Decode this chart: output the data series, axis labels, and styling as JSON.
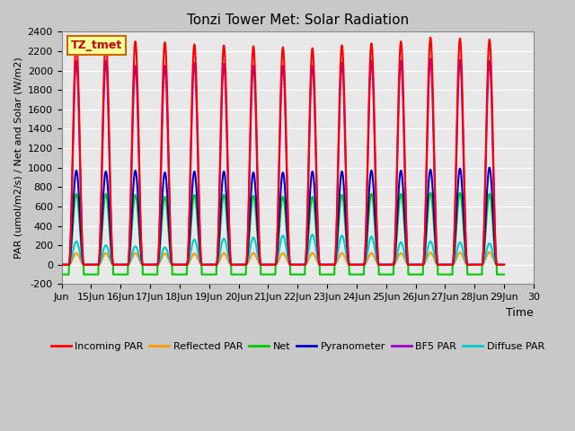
{
  "title": "Tonzi Tower Met: Solar Radiation",
  "ylabel": "PAR (umol/m2/s) / Net and Solar (W/m2)",
  "xlabel": "Time",
  "ylim": [
    -200,
    2400
  ],
  "xlim": [
    0,
    15.0
  ],
  "yticks": [
    -200,
    0,
    200,
    400,
    600,
    800,
    1000,
    1200,
    1400,
    1600,
    1800,
    2000,
    2200,
    2400
  ],
  "xtick_labels": [
    "Jun",
    "15Jun",
    "16Jun",
    "17Jun",
    "18Jun",
    "19Jun",
    "20Jun",
    "21Jun",
    "22Jun",
    "23Jun",
    "24Jun",
    "25Jun",
    "26Jun",
    "27Jun",
    "28Jun",
    "29Jun",
    "30"
  ],
  "xtick_positions": [
    0,
    1,
    2,
    3,
    4,
    5,
    6,
    7,
    8,
    9,
    10,
    11,
    12,
    13,
    14,
    15,
    16
  ],
  "plot_bg_color": "#e8e8e8",
  "grid_color": "#ffffff",
  "annotation_text": "TZ_tmet",
  "annotation_box_color": "#ffff99",
  "annotation_border_color": "#cc6600",
  "series": [
    {
      "name": "Incoming PAR",
      "color": "#ff0000",
      "lw": 1.5
    },
    {
      "name": "Reflected PAR",
      "color": "#ff9900",
      "lw": 1.5
    },
    {
      "name": "Net",
      "color": "#00cc00",
      "lw": 1.5
    },
    {
      "name": "Pyranometer",
      "color": "#0000cc",
      "lw": 1.5
    },
    {
      "name": "BF5 PAR",
      "color": "#9900cc",
      "lw": 1.5
    },
    {
      "name": "Diffuse PAR",
      "color": "#00cccc",
      "lw": 1.5
    }
  ],
  "n_days": 15,
  "pts_per_day": 200,
  "night_val": {
    "Incoming PAR": 0,
    "Reflected PAR": 0,
    "Net": -100,
    "Pyranometer": 0,
    "BF5 PAR": 0,
    "Diffuse PAR": 0
  },
  "peaks_variation": {
    "Incoming PAR": [
      2300,
      2310,
      2300,
      2290,
      2270,
      2260,
      2250,
      2240,
      2230,
      2260,
      2280,
      2300,
      2340,
      2330,
      2320
    ],
    "Reflected PAR": [
      120,
      120,
      120,
      115,
      115,
      120,
      120,
      120,
      120,
      120,
      120,
      120,
      125,
      125,
      130
    ],
    "Net": [
      730,
      730,
      720,
      700,
      720,
      720,
      710,
      700,
      700,
      720,
      730,
      730,
      740,
      740,
      730
    ],
    "Pyranometer": [
      970,
      960,
      970,
      950,
      960,
      960,
      950,
      950,
      960,
      960,
      970,
      970,
      980,
      990,
      1000
    ],
    "BF5 PAR": [
      2100,
      2100,
      2050,
      2050,
      2080,
      2070,
      2050,
      2050,
      2050,
      2080,
      2100,
      2100,
      2120,
      2110,
      2100
    ],
    "Diffuse PAR": [
      240,
      200,
      190,
      180,
      260,
      270,
      280,
      300,
      310,
      300,
      290,
      230,
      240,
      230,
      220
    ]
  },
  "draw_order": [
    "Reflected PAR",
    "Net",
    "Diffuse PAR",
    "Pyranometer",
    "BF5 PAR",
    "Incoming PAR"
  ]
}
